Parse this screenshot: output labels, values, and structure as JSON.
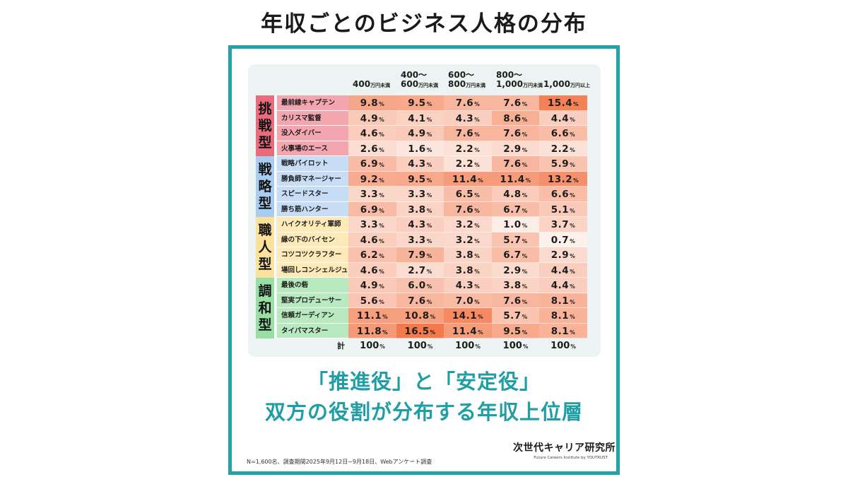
{
  "title": "年収ごとのビジネス人格の分布",
  "headline": {
    "line1": "「推進役」と「安定役」",
    "line2": "双方の役割が分布する年収上位層"
  },
  "footnote": "N=1,600名、調査期間2025年9月12日~9月18日、Webアンケート調査",
  "brand": {
    "name": "次世代キャリア研究所",
    "sub": "Future Careers Institute by YOUTRUST"
  },
  "colors": {
    "frame": "#21a3a7",
    "panel": "#ecf4f3",
    "group_challenge": "#e96b7c",
    "group_strategy": "#a9cdf0",
    "group_craft": "#fbe19b",
    "group_harmony": "#97dfa2"
  },
  "chart_data": {
    "type": "heatmap",
    "columns": [
      {
        "top": "",
        "bottom_value": "400",
        "bottom_unit": "万円未満"
      },
      {
        "top": "400～",
        "bottom_value": "600",
        "bottom_unit": "万円未満"
      },
      {
        "top": "600～",
        "bottom_value": "800",
        "bottom_unit": "万円未満"
      },
      {
        "top": "800～",
        "bottom_value": "1,000",
        "bottom_unit": "万円未満"
      },
      {
        "top": "",
        "bottom_value": "1,000",
        "bottom_unit": "万円以上"
      }
    ],
    "unit": "%",
    "groups": [
      {
        "label": [
          "挑",
          "戦",
          "型"
        ],
        "color": "#e96b7c",
        "label_bg": "#e96b7c",
        "row_bg": "#f4a6b0"
      },
      {
        "label": [
          "戦",
          "略",
          "型"
        ],
        "color": "#a9cdf0",
        "label_bg": "#a9cdf0",
        "row_bg": "#c6ddf5"
      },
      {
        "label": [
          "職",
          "人",
          "型"
        ],
        "color": "#fbe19b",
        "label_bg": "#fbe19b",
        "row_bg": "#fdeab8"
      },
      {
        "label": [
          "調",
          "和",
          "型"
        ],
        "color": "#97dfa2",
        "label_bg": "#97dfa2",
        "row_bg": "#b9e9bf"
      }
    ],
    "rows": [
      {
        "group": 0,
        "name": "最前線キャプテン",
        "values": [
          "9.8",
          "9.5",
          "7.6",
          "7.6",
          "15.4"
        ]
      },
      {
        "group": 0,
        "name": "カリスマ監督",
        "values": [
          "4.9",
          "4.1",
          "4.3",
          "8.6",
          "4.4"
        ]
      },
      {
        "group": 0,
        "name": "没入ダイバー",
        "values": [
          "4.6",
          "4.9",
          "7.6",
          "7.6",
          "6.6"
        ]
      },
      {
        "group": 0,
        "name": "火事場のエース",
        "values": [
          "2.6",
          "1.6",
          "2.2",
          "2.9",
          "2.2"
        ]
      },
      {
        "group": 1,
        "name": "戦略パイロット",
        "values": [
          "6.9",
          "4.3",
          "2.2",
          "7.6",
          "5.9"
        ]
      },
      {
        "group": 1,
        "name": "勝負師マネージャー",
        "values": [
          "9.2",
          "9.5",
          "11.4",
          "11.4",
          "13.2"
        ]
      },
      {
        "group": 1,
        "name": "スピードスター",
        "values": [
          "3.3",
          "3.3",
          "6.5",
          "4.8",
          "6.6"
        ]
      },
      {
        "group": 1,
        "name": "勝ち筋ハンター",
        "values": [
          "6.9",
          "3.8",
          "7.6",
          "6.7",
          "5.1"
        ]
      },
      {
        "group": 2,
        "name": "ハイクオリティ軍師",
        "values": [
          "3.3",
          "4.3",
          "3.2",
          "1.0",
          "3.7"
        ]
      },
      {
        "group": 2,
        "name": "縁の下のバイセン",
        "values": [
          "4.6",
          "3.3",
          "3.2",
          "5.7",
          "0.7"
        ]
      },
      {
        "group": 2,
        "name": "コツコツクラフター",
        "values": [
          "6.2",
          "7.9",
          "3.8",
          "6.7",
          "2.9"
        ]
      },
      {
        "group": 2,
        "name": "場回しコンシェルジュ",
        "values": [
          "4.6",
          "2.7",
          "3.8",
          "2.9",
          "4.4"
        ]
      },
      {
        "group": 3,
        "name": "最後の砦",
        "values": [
          "4.9",
          "6.0",
          "4.3",
          "3.8",
          "4.4"
        ]
      },
      {
        "group": 3,
        "name": "堅実プロデューサー",
        "values": [
          "5.6",
          "7.6",
          "7.0",
          "7.6",
          "8.1"
        ]
      },
      {
        "group": 3,
        "name": "信頼ガーディアン",
        "values": [
          "11.1",
          "10.8",
          "14.1",
          "5.7",
          "8.1"
        ]
      },
      {
        "group": 3,
        "name": "タイパマスター",
        "values": [
          "11.8",
          "16.5",
          "11.4",
          "9.5",
          "8.1"
        ]
      }
    ],
    "total_label": "計",
    "totals": [
      "100",
      "100",
      "100",
      "100",
      "100"
    ],
    "color_scale": {
      "low": "#fdf1ec",
      "high": "#f47a4e",
      "min": 0.7,
      "max": 16.5
    }
  }
}
